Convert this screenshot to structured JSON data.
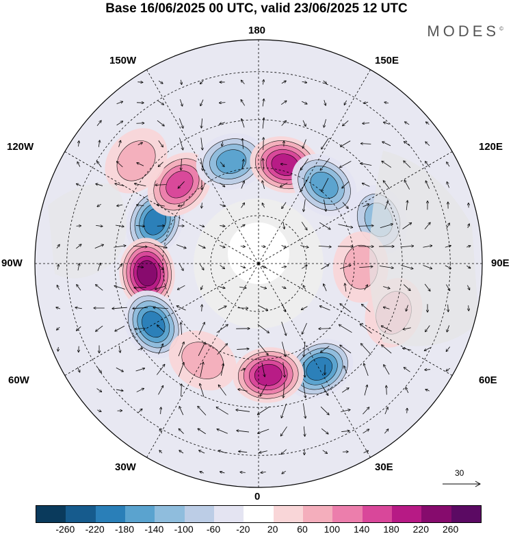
{
  "title": "Base 16/06/2025 00 UTC, valid 23/06/2025 12 UTC",
  "brand": "MODES",
  "brand_mark": "©",
  "longitude_labels": {
    "top": "180",
    "top_left": "150W",
    "top_right": "150E",
    "upper_left": "120W",
    "upper_right": "120E",
    "left": "90W",
    "right": "90E",
    "lower_left": "60W",
    "lower_right": "60E",
    "bottom_left": "30W",
    "bottom_right": "30E",
    "bottom": "0"
  },
  "reference_vector_label": "30",
  "colorbar": {
    "colors": [
      "#0a3a5c",
      "#165b8d",
      "#2a7fb8",
      "#5aa3cf",
      "#8fbddd",
      "#bccde6",
      "#e4e4f2",
      "#ffffff",
      "#f9d6d8",
      "#f4aebc",
      "#ec7eac",
      "#d9479a",
      "#b71a85",
      "#860b6d",
      "#5b0a63"
    ],
    "ticks": [
      "-260",
      "-220",
      "-180",
      "-140",
      "-100",
      "-60",
      "-20",
      "20",
      "60",
      "100",
      "140",
      "180",
      "220",
      "260"
    ]
  },
  "anomalies": [
    {
      "lat": 55,
      "lon": -112,
      "value": -200
    },
    {
      "lat": 55,
      "lon": -85,
      "value": 240
    },
    {
      "lat": 52,
      "lon": -60,
      "value": -180
    },
    {
      "lat": 55,
      "lon": -135,
      "value": 150
    },
    {
      "lat": 57,
      "lon": -165,
      "value": -170
    },
    {
      "lat": 58,
      "lon": 165,
      "value": 190
    },
    {
      "lat": 58,
      "lon": 140,
      "value": -150
    },
    {
      "lat": 50,
      "lon": 110,
      "value": -110
    },
    {
      "lat": 58,
      "lon": 88,
      "value": 90
    },
    {
      "lat": 45,
      "lon": 70,
      "value": 70
    },
    {
      "lat": 52,
      "lon": 30,
      "value": -190
    },
    {
      "lat": 55,
      "lon": 5,
      "value": 210
    },
    {
      "lat": 55,
      "lon": -30,
      "value": 90
    },
    {
      "lat": 40,
      "lon": -130,
      "value": 60
    }
  ]
}
